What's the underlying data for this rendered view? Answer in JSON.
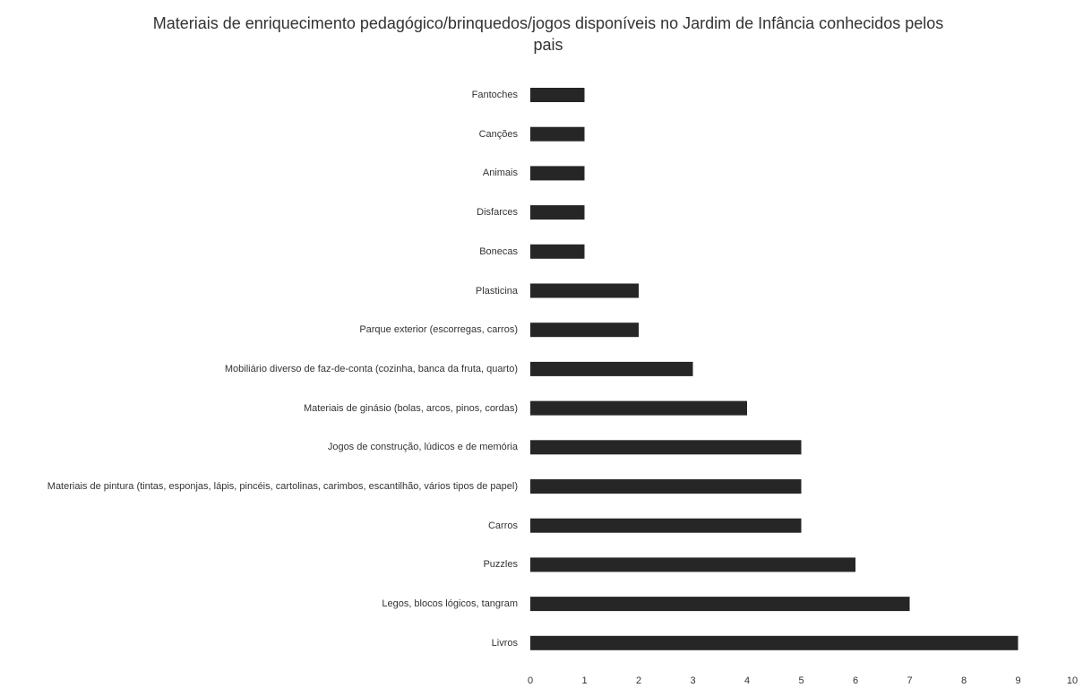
{
  "chart_data": {
    "type": "barh",
    "title": "Materiais de enriquecimento pedagógico/brinquedos/jogos disponíveis no Jardim de Infância conhecidos pelos pais",
    "categories": [
      "Fantoches",
      "Canções",
      "Animais",
      "Disfarces",
      "Bonecas",
      "Plasticina",
      "Parque exterior (escorregas, carros)",
      "Mobiliário diverso de faz-de-conta (cozinha, banca da fruta, quarto)",
      "Materiais de ginásio (bolas, arcos, pinos, cordas)",
      "Jogos de construção, lúdicos e de memória",
      "Materiais de pintura (tintas, esponjas, lápis, pincéis, cartolinas, carimbos, escantilhão, vários tipos de papel)",
      "Carros",
      "Puzzles",
      "Legos, blocos lógicos, tangram",
      "Livros"
    ],
    "values": [
      1,
      1,
      1,
      1,
      1,
      2,
      2,
      3,
      4,
      5,
      5,
      5,
      6,
      7,
      9
    ],
    "color": "#262626",
    "xlim": [
      0,
      10
    ],
    "xticks": [
      0,
      1,
      2,
      3,
      4,
      5,
      6,
      7,
      8,
      9,
      10
    ],
    "grid": false
  }
}
